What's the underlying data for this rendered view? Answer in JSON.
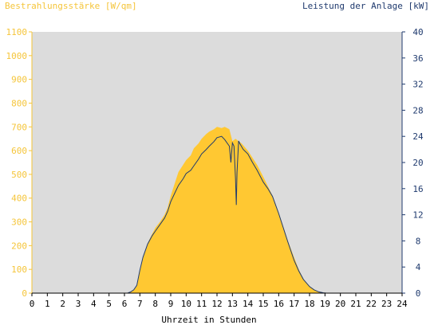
{
  "chart_data": {
    "type": "area",
    "left_axis_label": "Bestrahlungsstärke [W/qm]",
    "right_axis_label": "Leistung der Anlage [kW]",
    "xlabel": "Uhrzeit in Stunden",
    "xlim": [
      0,
      24
    ],
    "ylim_left": [
      0,
      1100
    ],
    "ylim_right": [
      0,
      40
    ],
    "x_ticks": [
      "0",
      "1",
      "2",
      "3",
      "4",
      "5",
      "6",
      "7",
      "8",
      "9",
      "10",
      "11",
      "12",
      "13",
      "14",
      "15",
      "16",
      "17",
      "18",
      "19",
      "20",
      "21",
      "22",
      "23",
      "24"
    ],
    "y_left_ticks": [
      "0",
      "100",
      "200",
      "300",
      "400",
      "500",
      "600",
      "700",
      "800",
      "900",
      "1000",
      "1100"
    ],
    "y_right_ticks": [
      "0",
      "4",
      "8",
      "12",
      "16",
      "20",
      "24",
      "28",
      "32",
      "36",
      "40"
    ],
    "colors": {
      "plot_background": "#dcdcdc",
      "irradiance_fill": "#ffc832",
      "power_line": "#1f3a6e",
      "left_axis_text": "#f5c53a",
      "right_axis_text": "#1f3a6e"
    },
    "series": [
      {
        "id": "irradiance",
        "axis": "left",
        "render": "area",
        "x": [
          0,
          6.2,
          6.4,
          6.6,
          6.8,
          7.0,
          7.2,
          7.5,
          7.8,
          8.0,
          8.3,
          8.6,
          8.8,
          9.0,
          9.3,
          9.5,
          9.8,
          10.0,
          10.3,
          10.5,
          10.8,
          11.0,
          11.3,
          11.5,
          11.8,
          12.0,
          12.3,
          12.5,
          12.8,
          13.0,
          13.2,
          13.4,
          13.6,
          13.8,
          14.0,
          14.3,
          14.6,
          15.0,
          15.3,
          15.6,
          16.0,
          16.3,
          16.6,
          17.0,
          17.3,
          17.6,
          18.0,
          18.3,
          18.6,
          18.9,
          19.1,
          24
        ],
        "y": [
          0,
          0,
          5,
          12,
          30,
          90,
          150,
          210,
          250,
          275,
          300,
          330,
          360,
          410,
          470,
          510,
          540,
          560,
          580,
          610,
          630,
          650,
          670,
          680,
          690,
          700,
          695,
          700,
          690,
          640,
          650,
          640,
          630,
          615,
          600,
          570,
          540,
          490,
          450,
          410,
          340,
          280,
          220,
          150,
          100,
          60,
          30,
          15,
          6,
          2,
          0,
          0
        ]
      },
      {
        "id": "power",
        "axis": "right",
        "render": "line",
        "x": [
          0,
          6.2,
          6.4,
          6.6,
          6.8,
          7.0,
          7.2,
          7.5,
          7.8,
          8.0,
          8.3,
          8.6,
          8.8,
          9.0,
          9.3,
          9.5,
          9.8,
          10.0,
          10.3,
          10.5,
          10.8,
          11.0,
          11.3,
          11.5,
          11.8,
          12.0,
          12.3,
          12.5,
          12.8,
          12.9,
          13.0,
          13.1,
          13.2,
          13.25,
          13.3,
          13.4,
          13.5,
          13.7,
          14.0,
          14.3,
          14.6,
          15.0,
          15.3,
          15.6,
          16.0,
          16.3,
          16.6,
          17.0,
          17.3,
          17.6,
          18.0,
          18.3,
          18.6,
          18.9,
          19.1,
          24
        ],
        "y": [
          0,
          0,
          0.2,
          0.5,
          1.2,
          3.5,
          5.5,
          7.5,
          8.8,
          9.5,
          10.5,
          11.5,
          12.5,
          14.0,
          15.5,
          16.5,
          17.5,
          18.3,
          18.8,
          19.5,
          20.5,
          21.3,
          22.0,
          22.5,
          23.2,
          23.8,
          24.0,
          23.5,
          22.5,
          20.0,
          23.0,
          22.5,
          17.5,
          13.5,
          18.5,
          23.3,
          22.8,
          22.0,
          21.3,
          20.0,
          18.8,
          17.0,
          16.0,
          14.8,
          12.2,
          10.0,
          7.8,
          5.0,
          3.4,
          2.1,
          1.0,
          0.5,
          0.2,
          0.05,
          0,
          0
        ]
      }
    ]
  }
}
